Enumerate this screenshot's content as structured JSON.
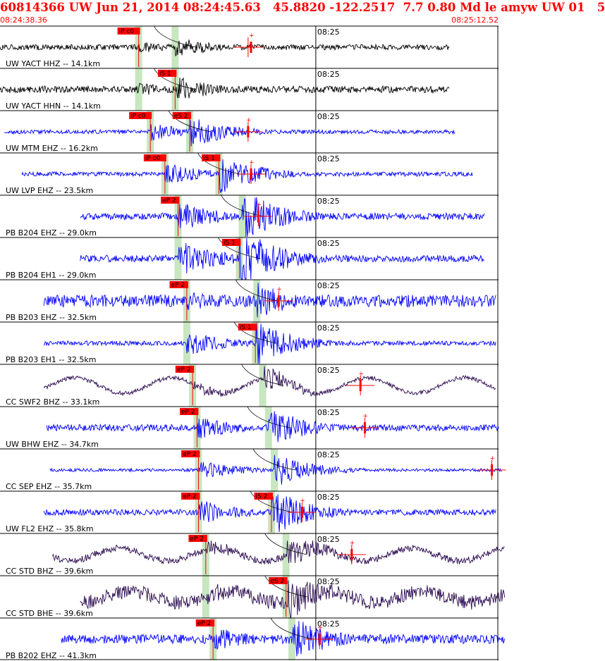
{
  "header": {
    "title": "60814366 UW Jun 21, 2014 08:24:45.63   45.8820 -122.2517  7.7 0.80 Md le amyw UW 01   5",
    "start_time": "08:24:38.36",
    "end_time": "08:25:12.52"
  },
  "colors": {
    "header_text": "#ff0000",
    "pick_box": "#ff0000",
    "pick_line": "#ff0000",
    "window_band": "#c8e6c0",
    "trace_black": "#000000",
    "trace_blue": "#0000ff",
    "trace_purple": "#2a0a50"
  },
  "chart_data": {
    "type": "line",
    "title": "",
    "x_axis": {
      "start": "08:24:38.36",
      "end": "08:25:12.52",
      "minute_tick_label": "08:25",
      "units": "s",
      "range": [
        0,
        34.16
      ]
    },
    "traces": [
      {
        "label": "UW YACT HHZ -- 14.1km",
        "color": "black",
        "start": 0.0,
        "end": 30.8,
        "amp": 7,
        "pre_amp": 0.25,
        "seed": 1,
        "kind": "quake",
        "lowfreq": 0,
        "picks": [
          {
            "label": "iP c0",
            "t": 9.5
          }
        ],
        "ptime": 9.5,
        "stime": 12.0,
        "coda": 17.0,
        "amp_mark": 17.2
      },
      {
        "label": "UW YACT HHN -- 14.1km",
        "color": "black",
        "start": 0.0,
        "end": 30.8,
        "amp": 9,
        "pre_amp": 0.25,
        "seed": 2,
        "kind": "quake",
        "lowfreq": 0,
        "picks": [
          {
            "label": "iS 1",
            "t": 12.0
          }
        ],
        "ptime": 9.5,
        "stime": 12.0,
        "coda": 0,
        "amp_mark": 0
      },
      {
        "label": "UW MTM EHZ -- 16.2km",
        "color": "blue",
        "start": 0.3,
        "end": 31.2,
        "amp": 11,
        "pre_amp": 0.12,
        "seed": 3,
        "kind": "quake",
        "lowfreq": 0,
        "picks": [
          {
            "label": "iP c0",
            "t": 10.3
          },
          {
            "label": "eS 2",
            "t": 13.0
          }
        ],
        "ptime": 10.3,
        "stime": 13.0,
        "coda": 17.0,
        "amp_mark": 17.0
      },
      {
        "label": "UW LVP EHZ -- 23.5km",
        "color": "blue",
        "start": 1.5,
        "end": 32.4,
        "amp": 14,
        "pre_amp": 0.1,
        "seed": 4,
        "kind": "quake",
        "lowfreq": 0,
        "picks": [
          {
            "label": "iP c0",
            "t": 11.3
          },
          {
            "label": "iS 1",
            "t": 15.0
          }
        ],
        "ptime": 11.3,
        "stime": 15.0,
        "coda": 17.2,
        "amp_mark": 17.2
      },
      {
        "label": "PB B204 EHZ -- 29.0km",
        "color": "blue",
        "start": 5.5,
        "end": 33.2,
        "amp": 18,
        "pre_amp": 0.12,
        "seed": 5,
        "kind": "quake",
        "lowfreq": 0,
        "picks": [
          {
            "label": "eP 2",
            "t": 12.2
          }
        ],
        "ptime": 12.2,
        "stime": 16.6,
        "coda": 17.7,
        "amp_mark": 17.7
      },
      {
        "label": "PB B204 EH1 -- 29.0km",
        "color": "blue",
        "start": 5.5,
        "end": 33.2,
        "amp": 22,
        "pre_amp": 0.1,
        "seed": 6,
        "kind": "quake",
        "lowfreq": 0,
        "picks": [
          {
            "label": "iS 1",
            "t": 16.4
          }
        ],
        "ptime": 12.2,
        "stime": 16.4,
        "coda": 0,
        "amp_mark": 0
      },
      {
        "label": "PB B203 EHZ -- 32.5km",
        "color": "blue",
        "start": 3.0,
        "end": 34.0,
        "amp": 13,
        "pre_amp": 0.3,
        "seed": 7,
        "kind": "quake",
        "lowfreq": 0,
        "picks": [
          {
            "label": "eP 2",
            "t": 12.8
          }
        ],
        "ptime": 12.8,
        "stime": 17.6,
        "coda": 19.1,
        "amp_mark": 19.1
      },
      {
        "label": "PB B203 EH1 -- 32.5km",
        "color": "blue",
        "start": 3.0,
        "end": 34.0,
        "amp": 15,
        "pre_amp": 0.1,
        "seed": 8,
        "kind": "quake",
        "lowfreq": 0,
        "picks": [
          {
            "label": "iS 1",
            "t": 17.5
          }
        ],
        "ptime": 12.8,
        "stime": 17.5,
        "coda": 0,
        "amp_mark": 0
      },
      {
        "label": "CC SWF2 BHZ -- 33.1km",
        "color": "purple",
        "start": 3.0,
        "end": 34.0,
        "amp": 9,
        "pre_amp": 0.15,
        "seed": 9,
        "kind": "quake",
        "lowfreq": 11,
        "picks": [
          {
            "label": "eP 2",
            "t": 13.2
          }
        ],
        "ptime": 13.2,
        "stime": 18.0,
        "coda": 24.7,
        "amp_mark": 24.7
      },
      {
        "label": "UW BHW EHZ -- 34.7km",
        "color": "blue",
        "start": 3.2,
        "end": 34.2,
        "amp": 14,
        "pre_amp": 0.15,
        "seed": 10,
        "kind": "quake",
        "lowfreq": 0,
        "picks": [
          {
            "label": "eP 2",
            "t": 13.5
          }
        ],
        "ptime": 13.5,
        "stime": 18.4,
        "coda": 25.0,
        "amp_mark": 25.0
      },
      {
        "label": "CC SEP EHZ -- 35.7km",
        "color": "blue",
        "start": 3.4,
        "end": 34.4,
        "amp": 12,
        "pre_amp": 0.08,
        "seed": 11,
        "kind": "quake",
        "lowfreq": 0,
        "picks": [
          {
            "label": "eP 2",
            "t": 13.6
          }
        ],
        "ptime": 13.6,
        "stime": 18.8,
        "coda": 33.7,
        "amp_mark": 33.7
      },
      {
        "label": "UW FL2 EHZ -- 35.8km",
        "color": "blue",
        "start": 3.0,
        "end": 34.0,
        "amp": 16,
        "pre_amp": 0.12,
        "seed": 12,
        "kind": "quake",
        "lowfreq": 0,
        "picks": [
          {
            "label": "eP 2",
            "t": 13.6
          },
          {
            "label": "iS 2",
            "t": 18.6
          }
        ],
        "ptime": 13.6,
        "stime": 18.6,
        "coda": 20.7,
        "amp_mark": 20.7
      },
      {
        "label": "CC STD BHZ -- 39.6km",
        "color": "purple",
        "start": 3.6,
        "end": 34.6,
        "amp": 11,
        "pre_amp": 0.2,
        "seed": 13,
        "kind": "quake",
        "lowfreq": 9,
        "picks": [
          {
            "label": "eP 2",
            "t": 14.1
          }
        ],
        "ptime": 14.1,
        "stime": 19.6,
        "coda": 24.1,
        "amp_mark": 24.1
      },
      {
        "label": "CC STD BHE -- 39.6km",
        "color": "purple",
        "start": 5.5,
        "end": 34.6,
        "amp": 15,
        "pre_amp": 0.3,
        "seed": 14,
        "kind": "quake",
        "lowfreq": 8,
        "picks": [
          {
            "label": "eS 2",
            "t": 19.6
          }
        ],
        "ptime": 14.1,
        "stime": 19.6,
        "coda": 0,
        "amp_mark": 0
      },
      {
        "label": "PB B202 EHZ -- 41.3km",
        "color": "blue",
        "start": 4.2,
        "end": 34.6,
        "amp": 15,
        "pre_amp": 0.2,
        "seed": 15,
        "kind": "quake",
        "lowfreq": 0,
        "picks": [
          {
            "label": "eP 2",
            "t": 14.6
          }
        ],
        "ptime": 14.6,
        "stime": 20.0,
        "coda": 21.9,
        "amp_mark": 21.9
      }
    ]
  }
}
